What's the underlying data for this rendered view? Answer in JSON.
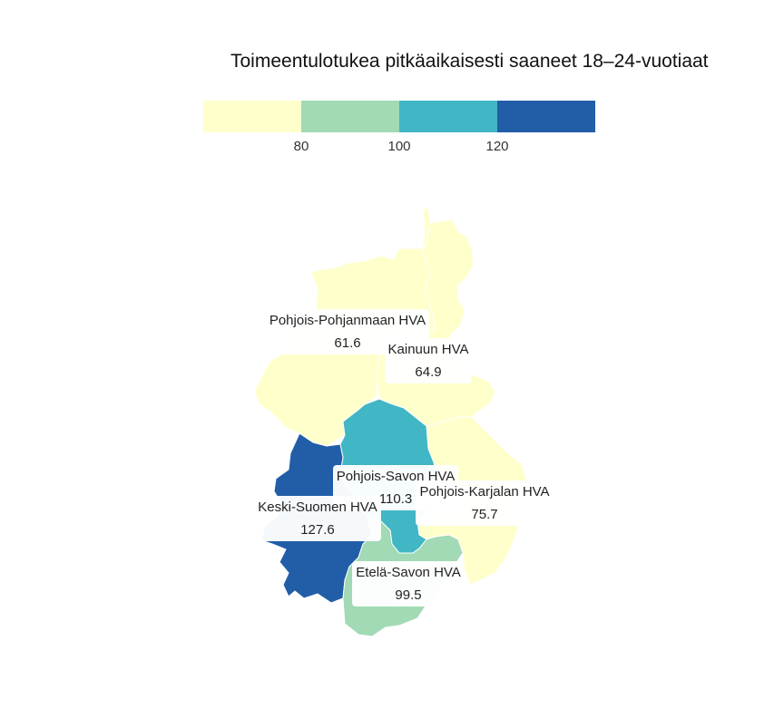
{
  "title": "Toimeentulotukea pitkäaikaisesti saaneet 18–24-vuotiaat",
  "legend": {
    "colors": [
      "#ffffcc",
      "#a1dab4",
      "#41b6c4",
      "#225ea8"
    ],
    "ticks": [
      "80",
      "100",
      "120"
    ]
  },
  "regions": [
    {
      "key": "pohjois-pohjanmaa",
      "name": "Pohjois-Pohjanmaan HVA",
      "value": "61.6",
      "color": "#ffffcc"
    },
    {
      "key": "kainuu",
      "name": "Kainuun HVA",
      "value": "64.9",
      "color": "#ffffcc"
    },
    {
      "key": "pohjois-savo",
      "name": "Pohjois-Savon HVA",
      "value": "110.3",
      "color": "#41b6c4"
    },
    {
      "key": "pohjois-karjala",
      "name": "Pohjois-Karjalan HVA",
      "value": "75.7",
      "color": "#ffffcc"
    },
    {
      "key": "keski-suomi",
      "name": "Keski-Suomen HVA",
      "value": "127.6",
      "color": "#225ea8"
    },
    {
      "key": "etela-savo",
      "name": "Etelä-Savon HVA",
      "value": "99.5",
      "color": "#a1dab4"
    }
  ]
}
